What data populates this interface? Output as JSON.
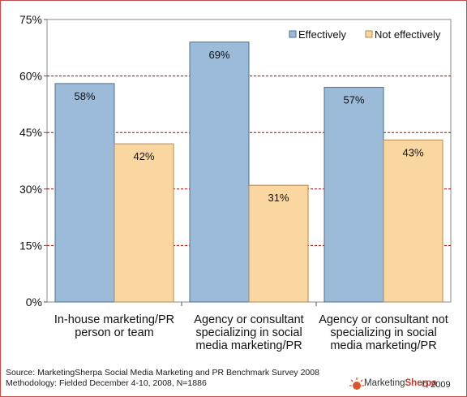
{
  "chart_data": {
    "type": "bar",
    "categories": [
      [
        "In-house marketing/PR",
        "person or team"
      ],
      [
        "Agency or consultant",
        "specializing in social",
        "media marketing/PR"
      ],
      [
        "Agency or consultant not",
        "specializing in social",
        "media marketing/PR"
      ]
    ],
    "series": [
      {
        "name": "Effectively",
        "values": [
          58,
          69,
          57
        ],
        "labels": [
          "58%",
          "69%",
          "57%"
        ],
        "color": "#9bbbd9",
        "stroke": "#4f6f94"
      },
      {
        "name": "Not effectively",
        "values": [
          42,
          31,
          43
        ],
        "labels": [
          "42%",
          "31%",
          "43%"
        ],
        "color": "#fad7a0",
        "stroke": "#b08a50"
      }
    ],
    "yticks": [
      0,
      15,
      30,
      45,
      60,
      75
    ],
    "ytick_labels": [
      "0%",
      "15%",
      "30%",
      "45%",
      "60%",
      "75%"
    ],
    "ylim": [
      0,
      75
    ],
    "grid": true,
    "grid_color": "#c00000",
    "legend_position": "top-right"
  },
  "footer": {
    "source": "Source: MarketingSherpa Social Media Marketing and PR Benchmark Survey 2008",
    "methodology": "Methodology: Fielded December 4-10, 2008, N=1886",
    "brand_part1": "Marketing",
    "brand_part2": "Sherpa",
    "copyright": "© 2009"
  }
}
